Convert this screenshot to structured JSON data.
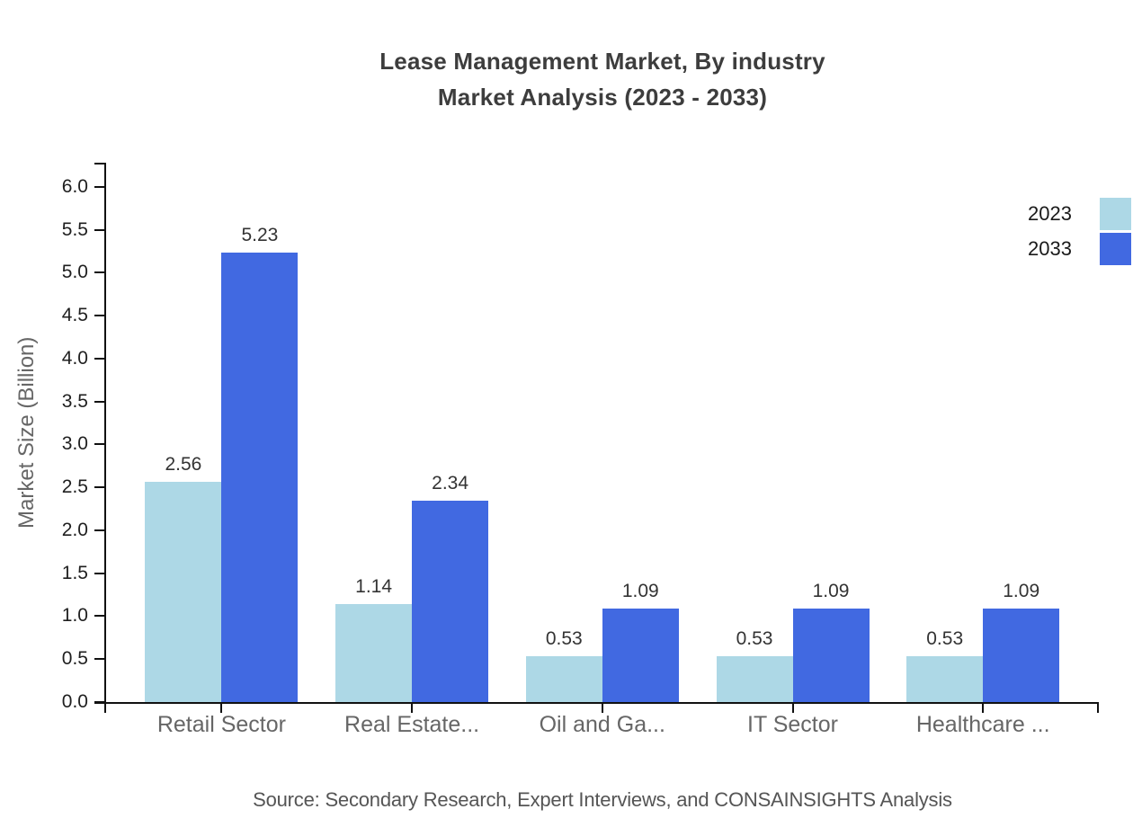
{
  "chart_data": {
    "type": "bar",
    "title": "Lease Management Market, By industry Market Analysis (2023 - 2033)",
    "title_lines": [
      "Lease Management Market, By industry",
      "Market Analysis (2023 - 2033)"
    ],
    "categories": [
      "Retail Sector",
      "Real Estate...",
      "Oil and Ga...",
      "IT Sector",
      "Healthcare ..."
    ],
    "series": [
      {
        "name": "2023",
        "color": "#ADD8E6",
        "values": [
          2.56,
          1.14,
          0.53,
          0.53,
          0.53
        ]
      },
      {
        "name": "2033",
        "color": "#4169E1",
        "values": [
          5.23,
          2.34,
          1.09,
          1.09,
          1.09
        ]
      }
    ],
    "xlabel": "",
    "ylabel": "Market Size (Billion)",
    "ylim": [
      0,
      6.28
    ],
    "yticks": [
      0.0,
      0.5,
      1.0,
      1.5,
      2.0,
      2.5,
      3.0,
      3.5,
      4.0,
      4.5,
      5.0,
      5.5,
      6.0
    ],
    "ytick_format_decimals": 1,
    "value_label_decimals": 2,
    "grid": false,
    "legend_position": "top-right",
    "value_labels": true,
    "axis_color": "#111111"
  },
  "source_note": "Source: Secondary Research, Expert Interviews, and CONSAINSIGHTS Analysis"
}
